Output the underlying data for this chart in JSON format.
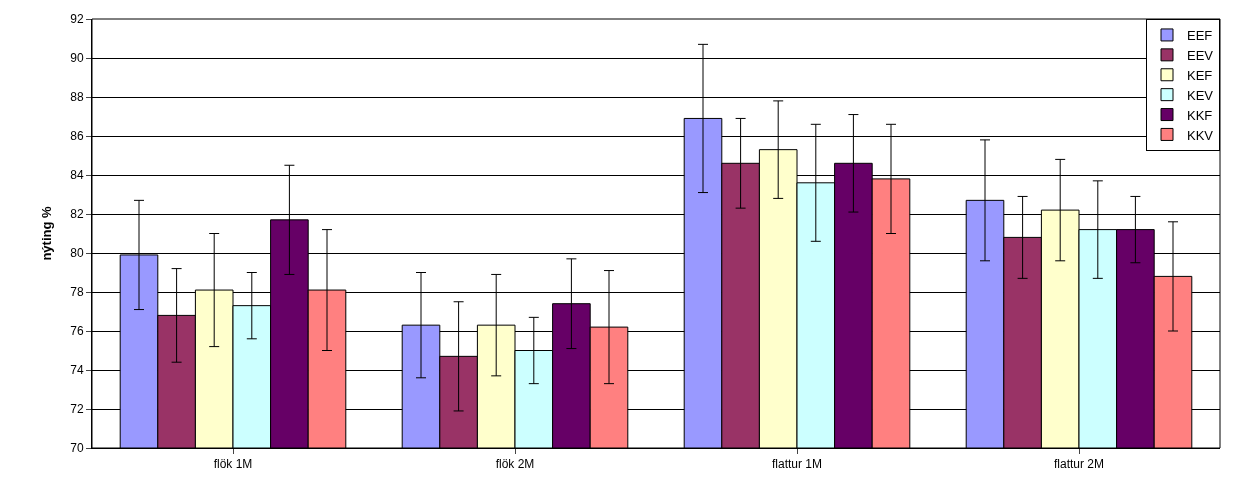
{
  "chart_data": {
    "type": "bar",
    "ylabel": "nýting %",
    "categories": [
      "flök 1M",
      "flök 2M",
      "flattur 1M",
      "flattur 2M"
    ],
    "series": [
      {
        "name": "EEF",
        "color": "#9999ff",
        "values": [
          79.9,
          76.3,
          86.9,
          82.7
        ],
        "errors": [
          2.8,
          2.7,
          3.8,
          3.1
        ]
      },
      {
        "name": "EEV",
        "color": "#993366",
        "values": [
          76.8,
          74.7,
          84.6,
          80.8
        ],
        "errors": [
          2.4,
          2.8,
          2.3,
          2.1
        ]
      },
      {
        "name": "KEF",
        "color": "#ffffcc",
        "values": [
          78.1,
          76.3,
          85.3,
          82.2
        ],
        "errors": [
          2.9,
          2.6,
          2.5,
          2.6
        ]
      },
      {
        "name": "KEV",
        "color": "#ccffff",
        "values": [
          77.3,
          75.0,
          83.6,
          81.2
        ],
        "errors": [
          1.7,
          1.7,
          3.0,
          2.5
        ]
      },
      {
        "name": "KKF",
        "color": "#660066",
        "values": [
          81.7,
          77.4,
          84.6,
          81.2
        ],
        "errors": [
          2.8,
          2.3,
          2.5,
          1.7
        ]
      },
      {
        "name": "KKV",
        "color": "#ff8080",
        "values": [
          78.1,
          76.2,
          83.8,
          78.8
        ],
        "errors": [
          3.1,
          2.9,
          2.8,
          2.8
        ]
      }
    ],
    "ylim": [
      70,
      92
    ],
    "yticks": [
      70,
      72,
      74,
      76,
      78,
      80,
      82,
      84,
      86,
      88,
      90,
      92
    ],
    "grid": "y",
    "legend": "top right"
  }
}
